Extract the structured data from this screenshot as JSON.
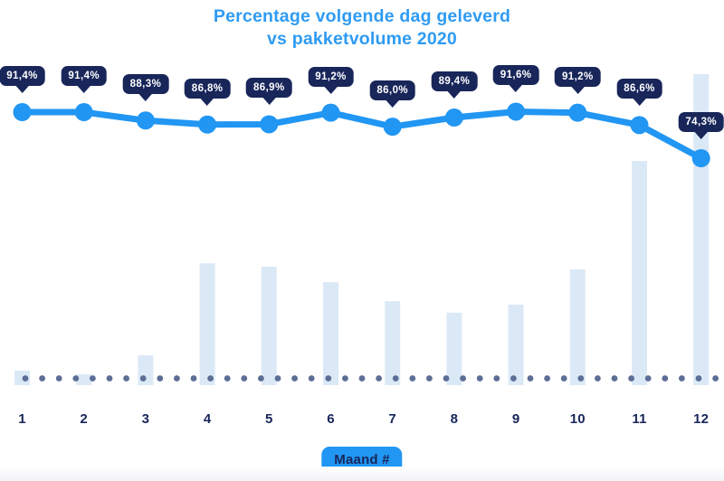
{
  "title": {
    "line1": "Percentage volgende dag geleverd",
    "line2": "vs pakketvolume 2020"
  },
  "x_axis": {
    "badge_label": "Maand #",
    "ticks": [
      "1",
      "2",
      "3",
      "4",
      "5",
      "6",
      "7",
      "8",
      "9",
      "10",
      "11",
      "12"
    ]
  },
  "chart_data": {
    "type": "combo (line + bar)",
    "title": "Percentage volgende dag geleverd vs pakketvolume 2020",
    "xlabel": "Maand #",
    "ylabel": "",
    "grid": false,
    "legend_position": "none",
    "categories": [
      "1",
      "2",
      "3",
      "4",
      "5",
      "6",
      "7",
      "8",
      "9",
      "10",
      "11",
      "12"
    ],
    "series": [
      {
        "name": "Percentage volgende dag geleverd",
        "type": "line",
        "unit": "%",
        "values": [
          91.4,
          91.4,
          88.3,
          86.8,
          86.9,
          91.2,
          86.0,
          89.4,
          91.6,
          91.2,
          86.6,
          74.3
        ],
        "point_labels": [
          "91,4%",
          "91,4%",
          "88,3%",
          "86,8%",
          "86,9%",
          "91,2%",
          "86,0%",
          "89,4%",
          "91,6%",
          "91,2%",
          "86,6%",
          "74,3%"
        ],
        "y_range_shown": [
          74.3,
          91.6
        ]
      },
      {
        "name": "Pakketvolume",
        "type": "bar",
        "unit": "relatief volume (geen as getoond, max = 100)",
        "values": [
          4.7,
          3.5,
          9.6,
          39.2,
          38.1,
          33.1,
          27.0,
          23.3,
          25.9,
          37.2,
          72.1,
          100
        ]
      }
    ]
  },
  "colors": {
    "accent_blue": "#2196F3",
    "title_blue": "#2E9BF3",
    "navy": "#18265A",
    "badge_text": "#FFFFFF",
    "bar_fill": "#DBE9F7",
    "dot_row": "#5C6E96",
    "background": "#FFFFFF"
  }
}
